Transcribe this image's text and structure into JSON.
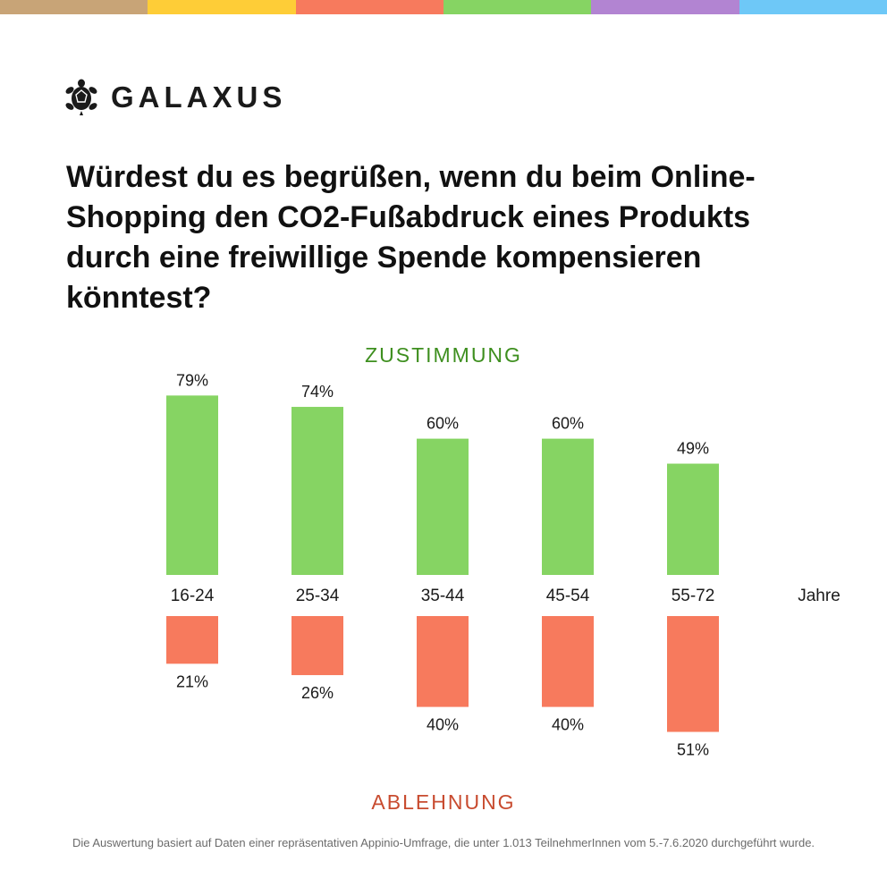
{
  "colors": {
    "strip": [
      "#c8a477",
      "#fecd37",
      "#f77a5d",
      "#86d463",
      "#b284d2",
      "#6ec8f7"
    ],
    "approve": "#86d463",
    "reject": "#f77a5d",
    "approve_text": "#3e8f1f",
    "reject_text": "#c84b2f"
  },
  "brand": {
    "name": "GALAXUS",
    "icon": "turtle-icon"
  },
  "question": "Würdest du es begrüßen, wenn du beim Online-Shopping den CO2-Fußabdruck eines Produkts durch eine freiwillige Spende kompensieren könntest?",
  "chart_data": {
    "type": "bar",
    "categories": [
      "16-24",
      "25-34",
      "35-44",
      "45-54",
      "55-72"
    ],
    "x_unit_label": "Jahre",
    "series": [
      {
        "name": "ZUSTIMMUNG",
        "values": [
          79,
          74,
          60,
          60,
          49
        ],
        "labels": [
          "79%",
          "74%",
          "60%",
          "60%",
          "49%"
        ]
      },
      {
        "name": "ABLEHNUNG",
        "values": [
          21,
          26,
          40,
          40,
          51
        ],
        "labels": [
          "21%",
          "26%",
          "40%",
          "40%",
          "51%"
        ]
      }
    ],
    "value_unit": "%",
    "grid": false,
    "legend": "none"
  },
  "footnote": "Die Auswertung basiert auf Daten einer repräsentativen Appinio-Umfrage, die unter 1.013 TeilnehmerInnen vom 5.-7.6.2020 durchgeführt wurde."
}
